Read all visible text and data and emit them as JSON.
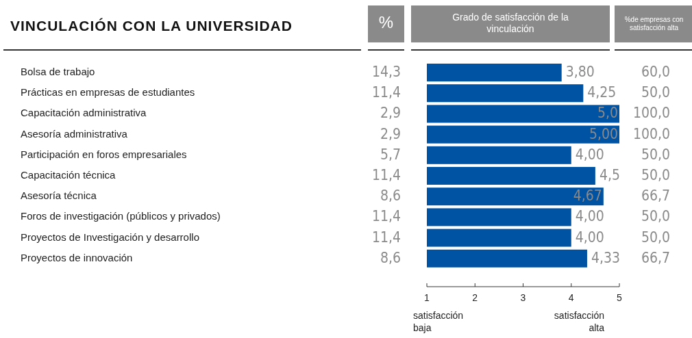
{
  "chart_data": [
    {
      "type": "other",
      "title": "VINCULACIÓN CON LA UNIVERSIDAD",
      "xlabel": "%",
      "categories": [
        "Bolsa de trabajo",
        "Prácticas en empresas de estudiantes",
        "Capacitación administrativa",
        "Asesoría administrativa",
        "Participación en foros empresariales",
        "Capacitación técnica",
        "Asesoría técnica",
        "Foros de investigación (públicos y privados)",
        "Proyectos de Investigación y desarrollo",
        "Proyectos de innovación"
      ],
      "values": [
        14.3,
        11.4,
        2.9,
        2.9,
        5.7,
        11.4,
        8.6,
        11.4,
        11.4,
        8.6
      ],
      "value_labels": [
        "14,3",
        "11,4",
        "2,9",
        "2,9",
        "5,7",
        "11,4",
        "8,6",
        "11,4",
        "11,4",
        "8,6"
      ]
    },
    {
      "type": "bar",
      "orientation": "horizontal",
      "title": "Grado de satisfacción de la vinculación",
      "categories": [
        null,
        null,
        null,
        null,
        null,
        null,
        null,
        null,
        null,
        null
      ],
      "values": [
        3.8,
        4.25,
        5.0,
        5.0,
        4.0,
        4.5,
        4.67,
        4.0,
        4.0,
        4.33
      ],
      "value_labels": [
        "3,80",
        "4,25",
        "5,0",
        "5,00",
        "4,00",
        "4,5",
        "4,67",
        "4,00",
        "4,00",
        "4,33"
      ],
      "color": "#0052a3",
      "xlim": [
        1,
        5
      ],
      "xticks": [
        1,
        2,
        3,
        4,
        5
      ],
      "annotations": [
        "satisfacción baja",
        "satisfacción alta"
      ]
    },
    {
      "type": "other",
      "title": "%de empresas con satisfacción alta",
      "values": [
        60.0,
        50.0,
        100.0,
        100.0,
        50.0,
        50.0,
        66.7,
        50.0,
        50.0,
        66.7
      ],
      "value_labels": [
        "60,0",
        "50,0",
        "100,0",
        "100,0",
        "50,0",
        "50,0",
        "66,7",
        "50,0",
        "50,0",
        "66,7"
      ]
    }
  ]
}
